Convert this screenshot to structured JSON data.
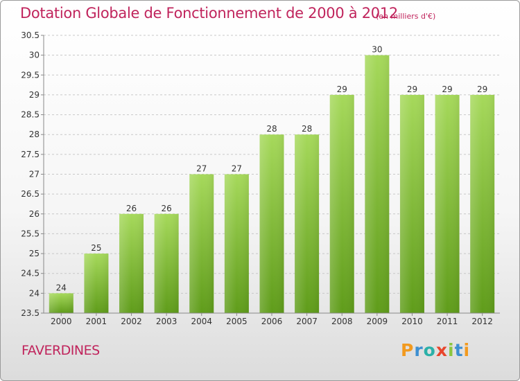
{
  "title": "Dotation Globale de Fonctionnement de 2000 à 2012",
  "subtitle": "(en milliers d'€)",
  "location": "FAVERDINES",
  "logo": "Proxiti",
  "colors": {
    "title": "#c0245c",
    "bar_light": "#a6d95b",
    "bar_dark": "#5f9c1a",
    "grid": "#c8c8c8"
  },
  "chart_data": {
    "type": "bar",
    "categories": [
      "2000",
      "2001",
      "2002",
      "2003",
      "2004",
      "2005",
      "2006",
      "2007",
      "2008",
      "2009",
      "2010",
      "2011",
      "2012"
    ],
    "values": [
      24,
      25,
      26,
      26,
      27,
      27,
      28,
      28,
      29,
      30,
      29,
      29,
      29
    ],
    "title": "Dotation Globale de Fonctionnement de 2000 à 2012",
    "subtitle": "(en milliers d'€)",
    "xlabel": "",
    "ylabel": "",
    "ylim": [
      23.5,
      30.5
    ],
    "yticks": [
      "23.5",
      "24",
      "24.5",
      "25",
      "25.5",
      "26",
      "26.5",
      "27",
      "27.5",
      "28",
      "28.5",
      "29",
      "29.5",
      "30",
      "30.5"
    ],
    "grid": "horizontal dashed",
    "legend": "none"
  }
}
